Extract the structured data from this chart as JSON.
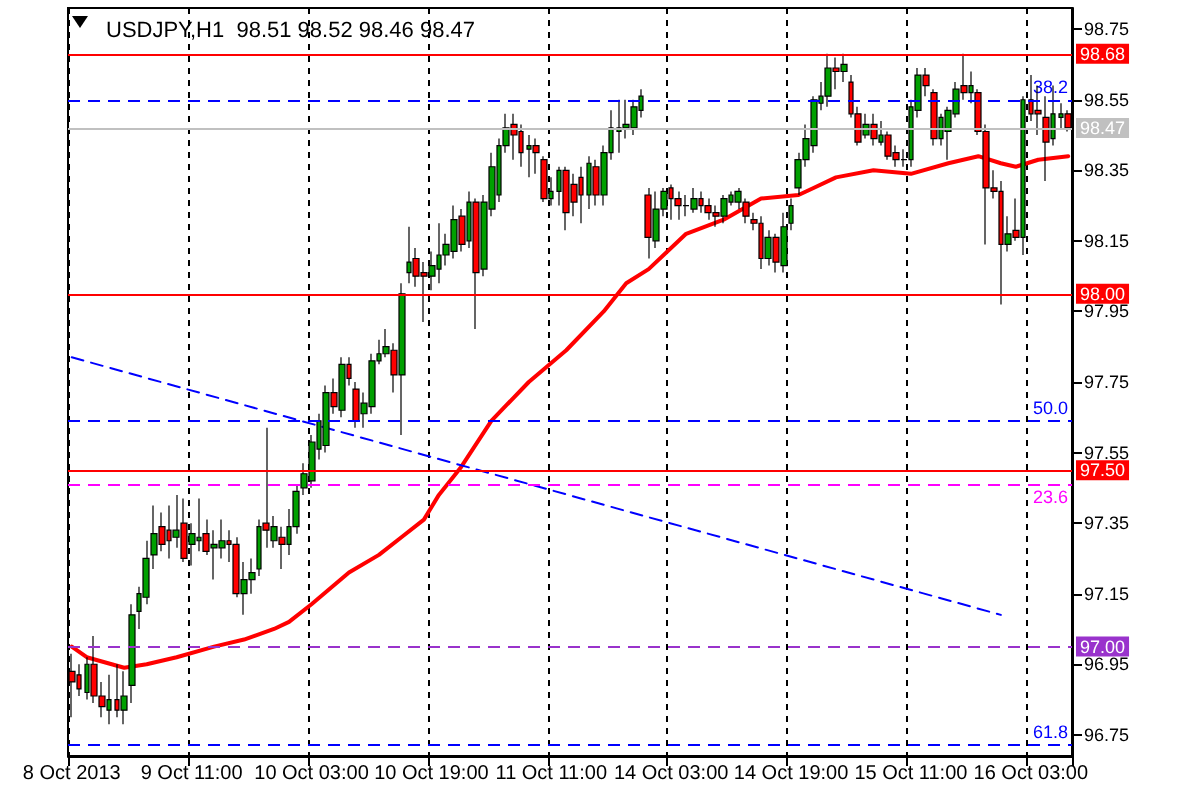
{
  "chart_data": {
    "type": "candlestick",
    "title": "USDJPY,H1  98.51 98.52 98.46 98.47",
    "categories": [
      "8 Oct 2013",
      null,
      null,
      null,
      null,
      null,
      null,
      null,
      null,
      null,
      null,
      null,
      null,
      null,
      null,
      null,
      "9 Oct 11:00",
      null,
      null,
      null,
      null,
      null,
      null,
      null,
      null,
      null,
      null,
      null,
      null,
      null,
      null,
      null,
      "10 Oct 03:00",
      null,
      null,
      null,
      null,
      null,
      null,
      null,
      null,
      null,
      null,
      null,
      null,
      null,
      null,
      null,
      "10 Oct 19:00",
      null,
      null,
      null,
      null,
      null,
      null,
      null,
      null,
      null,
      null,
      null,
      null,
      null,
      null,
      null,
      "11 Oct 11:00",
      null,
      null,
      null,
      null,
      null,
      null,
      null,
      null,
      null,
      null,
      null,
      null,
      null,
      null,
      null,
      "14 Oct 03:00",
      null,
      null,
      null,
      null,
      null,
      null,
      null,
      null,
      null,
      null,
      null,
      null,
      null,
      null,
      null,
      "14 Oct 19:00",
      null,
      null,
      null,
      null,
      null,
      null,
      null,
      null,
      null,
      null,
      null,
      null,
      null,
      null,
      null,
      "15 Oct 11:00",
      null,
      null,
      null,
      null,
      null,
      null,
      null,
      null,
      null,
      null,
      null,
      null,
      null,
      null,
      null,
      "16 Oct 03:00",
      null,
      null,
      null,
      null,
      null
    ],
    "series": [
      {
        "type": "candlestick",
        "ohlc": [
          [
            96.93,
            96.98,
            96.8,
            96.9
          ],
          [
            96.92,
            96.95,
            96.86,
            96.88
          ],
          [
            96.87,
            96.97,
            96.85,
            96.95
          ],
          [
            96.95,
            97.03,
            96.84,
            96.86
          ],
          [
            96.86,
            96.9,
            96.8,
            96.83
          ],
          [
            96.82,
            96.92,
            96.78,
            96.85
          ],
          [
            96.85,
            96.95,
            96.8,
            96.82
          ],
          [
            96.82,
            96.93,
            96.78,
            96.86
          ],
          [
            96.89,
            97.12,
            96.84,
            97.09
          ],
          [
            97.1,
            97.17,
            97.05,
            97.15
          ],
          [
            97.14,
            97.3,
            97.12,
            97.25
          ],
          [
            97.26,
            97.4,
            97.22,
            97.32
          ],
          [
            97.34,
            97.38,
            97.27,
            97.29
          ],
          [
            97.33,
            97.4,
            97.25,
            97.3
          ],
          [
            97.31,
            97.43,
            97.28,
            97.33
          ],
          [
            97.35,
            97.42,
            97.24,
            97.25
          ],
          [
            97.29,
            97.35,
            97.23,
            97.32
          ],
          [
            97.3,
            97.42,
            97.27,
            97.31
          ],
          [
            97.32,
            97.36,
            97.26,
            97.27
          ],
          [
            97.28,
            97.33,
            97.19,
            97.29
          ],
          [
            97.28,
            97.36,
            97.25,
            97.3
          ],
          [
            97.3,
            97.33,
            97.24,
            97.29
          ],
          [
            97.29,
            97.31,
            97.14,
            97.15
          ],
          [
            97.15,
            97.24,
            97.09,
            97.19
          ],
          [
            97.19,
            97.25,
            97.15,
            97.21
          ],
          [
            97.22,
            97.36,
            97.2,
            97.34
          ],
          [
            97.35,
            97.62,
            97.28,
            97.33
          ],
          [
            97.3,
            97.37,
            97.28,
            97.34
          ],
          [
            97.31,
            97.34,
            97.22,
            97.29
          ],
          [
            97.29,
            97.39,
            97.26,
            97.34
          ],
          [
            97.34,
            97.46,
            97.32,
            97.44
          ],
          [
            97.45,
            97.52,
            97.43,
            97.49
          ],
          [
            97.47,
            97.6,
            97.45,
            97.58
          ],
          [
            97.56,
            97.66,
            97.53,
            97.64
          ],
          [
            97.57,
            97.74,
            97.55,
            97.72
          ],
          [
            97.72,
            97.76,
            97.66,
            97.68
          ],
          [
            97.67,
            97.82,
            97.65,
            97.8
          ],
          [
            97.8,
            97.82,
            97.74,
            97.76
          ],
          [
            97.73,
            97.75,
            97.62,
            97.64
          ],
          [
            97.66,
            97.72,
            97.62,
            97.69
          ],
          [
            97.68,
            97.83,
            97.66,
            97.81
          ],
          [
            97.81,
            97.87,
            97.8,
            97.83
          ],
          [
            97.83,
            97.9,
            97.82,
            97.85
          ],
          [
            97.84,
            97.86,
            97.72,
            97.77
          ],
          [
            97.77,
            98.03,
            97.6,
            98.0
          ],
          [
            98.06,
            98.19,
            98.03,
            98.09
          ],
          [
            98.1,
            98.13,
            98.02,
            98.05
          ],
          [
            98.06,
            98.09,
            97.92,
            98.05
          ],
          [
            98.05,
            98.12,
            98.01,
            98.08
          ],
          [
            98.07,
            98.2,
            98.03,
            98.11
          ],
          [
            98.11,
            98.17,
            98.08,
            98.14
          ],
          [
            98.12,
            98.25,
            98.1,
            98.21
          ],
          [
            98.22,
            98.24,
            98.12,
            98.14
          ],
          [
            98.15,
            98.29,
            98.13,
            98.26
          ],
          [
            98.26,
            98.27,
            97.9,
            98.06
          ],
          [
            98.07,
            98.28,
            98.05,
            98.26
          ],
          [
            98.24,
            98.4,
            98.22,
            98.36
          ],
          [
            98.28,
            98.44,
            98.26,
            98.42
          ],
          [
            98.42,
            98.51,
            98.4,
            98.47
          ],
          [
            98.48,
            98.51,
            98.38,
            98.45
          ],
          [
            98.46,
            98.48,
            98.36,
            98.4
          ],
          [
            98.41,
            98.45,
            98.33,
            98.42
          ],
          [
            98.42,
            98.44,
            98.34,
            98.4
          ],
          [
            98.38,
            98.39,
            98.26,
            98.27
          ],
          [
            98.27,
            98.33,
            98.25,
            98.29
          ],
          [
            98.29,
            98.36,
            98.25,
            98.35
          ],
          [
            98.35,
            98.36,
            98.18,
            98.23
          ],
          [
            98.31,
            98.34,
            98.22,
            98.26
          ],
          [
            98.33,
            98.36,
            98.2,
            98.28
          ],
          [
            98.28,
            98.39,
            98.24,
            98.37
          ],
          [
            98.36,
            98.38,
            98.25,
            98.28
          ],
          [
            98.28,
            98.42,
            98.25,
            98.4
          ],
          [
            98.4,
            98.52,
            98.38,
            98.47
          ],
          [
            98.46,
            98.55,
            98.4,
            98.47
          ],
          [
            98.47,
            98.55,
            98.44,
            98.48
          ],
          [
            98.47,
            98.55,
            98.45,
            98.53
          ],
          [
            98.52,
            98.58,
            98.5,
            98.56
          ],
          [
            98.28,
            98.3,
            98.1,
            98.16
          ],
          [
            98.15,
            98.29,
            98.13,
            98.24
          ],
          [
            98.24,
            98.3,
            98.22,
            98.29
          ],
          [
            98.3,
            98.31,
            98.21,
            98.27
          ],
          [
            98.27,
            98.29,
            98.21,
            98.25
          ],
          [
            98.25,
            98.28,
            98.22,
            98.25
          ],
          [
            98.24,
            98.3,
            98.23,
            98.27
          ],
          [
            98.27,
            98.29,
            98.23,
            98.25
          ],
          [
            98.25,
            98.27,
            98.21,
            98.23
          ],
          [
            98.23,
            98.25,
            98.19,
            98.22
          ],
          [
            98.22,
            98.28,
            98.2,
            98.27
          ],
          [
            98.26,
            98.29,
            98.25,
            98.28
          ],
          [
            98.26,
            98.3,
            98.24,
            98.29
          ],
          [
            98.26,
            98.27,
            98.2,
            98.22
          ],
          [
            98.21,
            98.23,
            98.18,
            98.2
          ],
          [
            98.2,
            98.22,
            98.07,
            98.1
          ],
          [
            98.1,
            98.18,
            98.08,
            98.16
          ],
          [
            98.16,
            98.17,
            98.06,
            98.09
          ],
          [
            98.08,
            98.23,
            98.06,
            98.19
          ],
          [
            98.2,
            98.27,
            98.18,
            98.25
          ],
          [
            98.3,
            98.4,
            98.28,
            98.38
          ],
          [
            98.38,
            98.48,
            98.36,
            98.44
          ],
          [
            98.42,
            98.56,
            98.4,
            98.55
          ],
          [
            98.54,
            98.6,
            98.52,
            98.56
          ],
          [
            98.56,
            98.68,
            98.53,
            98.64
          ],
          [
            98.64,
            98.67,
            98.58,
            98.63
          ],
          [
            98.63,
            98.68,
            98.6,
            98.65
          ],
          [
            98.6,
            98.62,
            98.5,
            98.51
          ],
          [
            98.51,
            98.53,
            98.42,
            98.43
          ],
          [
            98.45,
            98.51,
            98.44,
            98.48
          ],
          [
            98.48,
            98.51,
            98.42,
            98.44
          ],
          [
            98.43,
            98.49,
            98.42,
            98.45
          ],
          [
            98.45,
            98.46,
            98.38,
            98.39
          ],
          [
            98.4,
            98.42,
            98.36,
            98.38
          ],
          [
            98.38,
            98.41,
            98.36,
            98.38
          ],
          [
            98.38,
            98.55,
            98.36,
            98.53
          ],
          [
            98.52,
            98.64,
            98.5,
            98.62
          ],
          [
            98.62,
            98.64,
            98.56,
            98.59
          ],
          [
            98.57,
            98.58,
            98.42,
            98.44
          ],
          [
            98.44,
            98.51,
            98.42,
            98.5
          ],
          [
            98.46,
            98.53,
            98.38,
            98.52
          ],
          [
            98.51,
            98.6,
            98.5,
            98.58
          ],
          [
            98.59,
            98.68,
            98.55,
            98.57
          ],
          [
            98.57,
            98.63,
            98.54,
            98.59
          ],
          [
            98.57,
            98.58,
            98.45,
            98.46
          ],
          [
            98.46,
            98.48,
            98.14,
            98.3
          ],
          [
            98.3,
            98.35,
            98.27,
            98.29
          ],
          [
            98.29,
            98.32,
            97.97,
            98.14
          ],
          [
            98.14,
            98.22,
            98.12,
            98.17
          ],
          [
            98.18,
            98.27,
            98.15,
            98.16
          ],
          [
            98.16,
            98.56,
            98.11,
            98.55
          ],
          [
            98.55,
            98.62,
            98.49,
            98.51
          ],
          [
            98.52,
            98.59,
            98.45,
            98.51
          ],
          [
            98.5,
            98.56,
            98.32,
            98.43
          ],
          [
            98.44,
            98.59,
            98.42,
            98.51
          ],
          [
            98.5,
            98.54,
            98.47,
            98.51
          ],
          [
            98.51,
            98.52,
            98.46,
            98.47
          ]
        ]
      },
      {
        "type": "line",
        "color": "#ff0000",
        "marker": "none",
        "values": [
          97.0,
          null,
          96.97,
          null,
          null,
          null,
          null,
          96.94,
          null,
          null,
          96.95,
          null,
          null,
          null,
          96.97,
          null,
          null,
          null,
          null,
          97.0,
          null,
          null,
          null,
          97.02,
          null,
          null,
          null,
          97.05,
          null,
          97.07,
          null,
          null,
          97.12,
          null,
          null,
          null,
          null,
          97.21,
          null,
          null,
          null,
          97.26,
          null,
          null,
          97.31,
          null,
          null,
          97.36,
          null,
          97.43,
          null,
          null,
          97.51,
          null,
          null,
          null,
          97.64,
          null,
          null,
          null,
          null,
          97.75,
          null,
          null,
          null,
          null,
          97.84,
          null,
          null,
          null,
          null,
          97.95,
          null,
          null,
          98.03,
          null,
          null,
          98.07,
          null,
          null,
          null,
          null,
          98.17,
          null,
          null,
          null,
          null,
          98.21,
          null,
          null,
          null,
          null,
          98.27,
          null,
          null,
          null,
          null,
          98.28,
          null,
          98.3,
          null,
          null,
          98.33,
          null,
          null,
          null,
          null,
          98.35,
          null,
          null,
          null,
          null,
          98.34,
          null,
          null,
          null,
          null,
          98.37,
          null,
          null,
          null,
          98.39,
          null,
          null,
          98.37,
          null,
          98.36,
          null,
          null,
          98.38,
          null,
          null,
          null,
          98.39
        ]
      },
      {
        "type": "line",
        "color": "#0000ff",
        "marker": "none",
        "line_style": "dashed",
        "values": [
          97.82,
          null,
          null,
          null,
          null,
          null,
          null,
          null,
          null,
          null,
          null,
          null,
          null,
          null,
          null,
          null,
          null,
          null,
          null,
          null,
          null,
          null,
          null,
          null,
          null,
          null,
          null,
          null,
          null,
          null,
          null,
          null,
          null,
          null,
          null,
          null,
          null,
          null,
          null,
          null,
          null,
          null,
          null,
          null,
          null,
          null,
          null,
          null,
          null,
          null,
          null,
          null,
          null,
          null,
          null,
          null,
          null,
          null,
          null,
          null,
          null,
          null,
          null,
          null,
          null,
          null,
          null,
          null,
          null,
          null,
          null,
          null,
          null,
          null,
          null,
          null,
          null,
          null,
          null,
          null,
          null,
          null,
          null,
          null,
          null,
          null,
          null,
          null,
          null,
          null,
          null,
          null,
          null,
          null,
          null,
          null,
          null,
          null,
          null,
          null,
          null,
          null,
          null,
          null,
          null,
          null,
          null,
          null,
          null,
          null,
          null,
          null,
          null,
          null,
          null,
          null,
          null,
          null,
          null,
          null,
          null,
          null,
          null,
          null,
          97.09,
          null,
          null,
          null,
          null,
          null,
          null,
          null,
          null,
          null
        ]
      }
    ],
    "ylim": [
      96.69,
      98.81
    ],
    "yticks": [
      96.75,
      96.95,
      97.15,
      97.35,
      97.55,
      97.75,
      97.95,
      98.15,
      98.35,
      98.55,
      98.75
    ],
    "grid": "x",
    "annotations": [
      {
        "text": "38.2",
        "y": 98.55
      },
      {
        "text": "50.0",
        "y": 97.64
      },
      {
        "text": "23.6",
        "y": 97.46
      },
      {
        "text": "61.8",
        "y": 96.72
      }
    ],
    "ref_lines": [
      {
        "axis": "y",
        "value": 98.68,
        "label": "98.68",
        "color": "#ff0000"
      },
      {
        "axis": "y",
        "value": 98.55,
        "color": "#0000ff",
        "line_style": "dashed"
      },
      {
        "axis": "y",
        "value": 98.47,
        "label": "98.47",
        "color": "#c0c0c0"
      },
      {
        "axis": "y",
        "value": 98.0,
        "label": "98.00",
        "color": "#ff0000"
      },
      {
        "axis": "y",
        "value": 97.64,
        "color": "#0000ff",
        "line_style": "dashed"
      },
      {
        "axis": "y",
        "value": 97.5,
        "label": "97.50",
        "color": "#ff0000"
      },
      {
        "axis": "y",
        "value": 97.46,
        "color": "#ff00ff",
        "line_style": "dashed"
      },
      {
        "axis": "y",
        "value": 97.0,
        "label": "97.00",
        "color": "#9933cc",
        "line_style": "dashed"
      },
      {
        "axis": "y",
        "value": 96.72,
        "color": "#0000ff",
        "line_style": "dashed"
      }
    ]
  }
}
